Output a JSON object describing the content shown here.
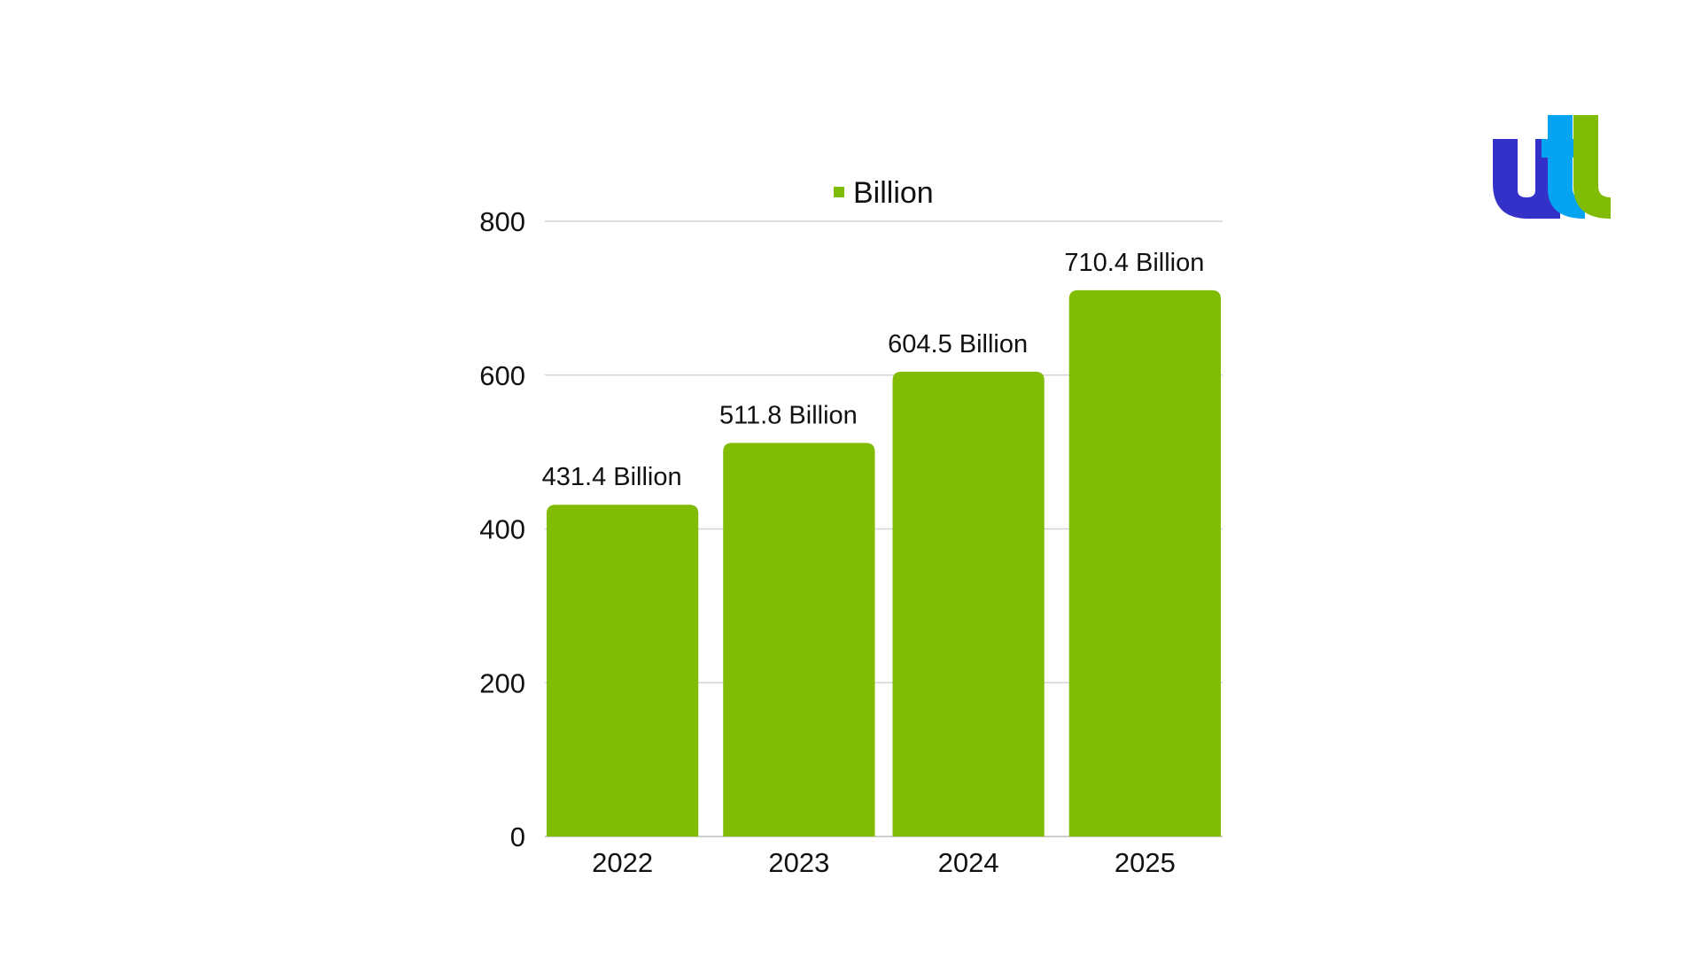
{
  "legend": {
    "label": "Billion"
  },
  "colors": {
    "bar": "#7fbc03",
    "logo_dark_blue": "#3431c9",
    "logo_cyan": "#05a4f2",
    "logo_green": "#7fbc03"
  },
  "logo": {
    "text": "utl",
    "icon": "utl-logo-icon"
  },
  "chart_data": {
    "type": "bar",
    "categories": [
      "2022",
      "2023",
      "2024",
      "2025"
    ],
    "series": [
      {
        "name": "Billion",
        "values": [
          431.4,
          511.8,
          604.5,
          710.4
        ]
      }
    ],
    "data_labels": [
      "431.4 Billion",
      "511.8 Billion",
      "604.5 Billion",
      "710.4 Billion"
    ],
    "yticks": [
      "0",
      "200",
      "400",
      "600",
      "800"
    ],
    "ylim": [
      0,
      800
    ],
    "grid": true,
    "legend_position": "top-center"
  }
}
